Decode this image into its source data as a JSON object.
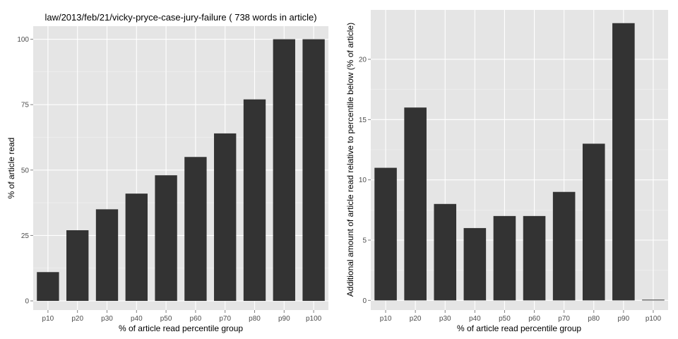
{
  "chart_data": [
    {
      "type": "bar",
      "title": "law/2013/feb/21/vicky-pryce-case-jury-failure ( 738 words in article)",
      "xlabel": "% of article read percentile group",
      "ylabel": "% of article read",
      "categories": [
        "p10",
        "p20",
        "p30",
        "p40",
        "p50",
        "p60",
        "p70",
        "p80",
        "p90",
        "p100"
      ],
      "values": [
        11,
        27,
        35,
        41,
        48,
        55,
        64,
        77,
        100,
        100
      ],
      "ylim": [
        -3.5,
        105
      ],
      "yticks": [
        0,
        25,
        50,
        75,
        100
      ],
      "grid": true,
      "colors": {
        "panel": "#e5e5e5",
        "grid_major": "#ffffff",
        "grid_minor": "#f2f2f2",
        "bar": "#333333",
        "tick_text": "#4d4d4d"
      }
    },
    {
      "type": "bar",
      "title": "",
      "xlabel": "% of article read percentile group",
      "ylabel": "Additional amount of article read relative to percentile below (% of article)",
      "categories": [
        "p10",
        "p20",
        "p30",
        "p40",
        "p50",
        "p60",
        "p70",
        "p80",
        "p90",
        "p100"
      ],
      "values": [
        11,
        16,
        8,
        6,
        7,
        7,
        9,
        13,
        23,
        0
      ],
      "ylim": [
        -0.8,
        24.1
      ],
      "yticks": [
        0,
        5,
        10,
        15,
        20
      ],
      "grid": true,
      "colors": {
        "panel": "#e5e5e5",
        "grid_major": "#ffffff",
        "grid_minor": "#f2f2f2",
        "bar": "#333333",
        "tick_text": "#4d4d4d"
      }
    }
  ]
}
